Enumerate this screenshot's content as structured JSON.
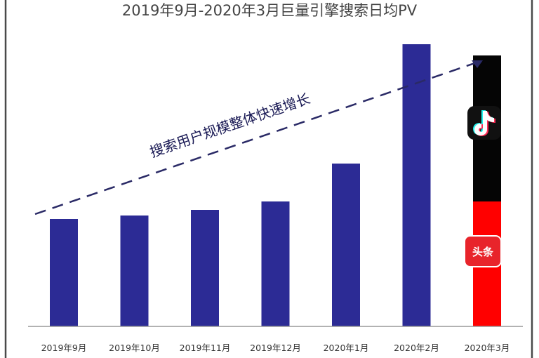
{
  "chart_data": {
    "type": "bar",
    "title": "2019年9月-2020年3月巨量引擎搜索日均PV",
    "categories": [
      "2019年9月",
      "2019年10月",
      "2019年11月",
      "2019年12月",
      "2020年1月",
      "2020年2月",
      "2020年3月"
    ],
    "values": [
      153,
      158,
      166,
      178,
      232,
      402,
      386
    ],
    "last_bar_segments": [
      {
        "name": "抖音",
        "value": 208
      },
      {
        "name": "头条",
        "value": 178
      }
    ],
    "annotation": "搜索用户规模整体快速增长",
    "toutiao_label": "头条",
    "ylim": [
      0,
      420
    ],
    "grid": false,
    "colors": {
      "bar": "#2c2b95",
      "douyin_segment": "#050505",
      "toutiao_segment": "#ff0000",
      "trend_line": "#2a2a66",
      "axis": "#999999",
      "border": "#4a4a4a"
    }
  }
}
